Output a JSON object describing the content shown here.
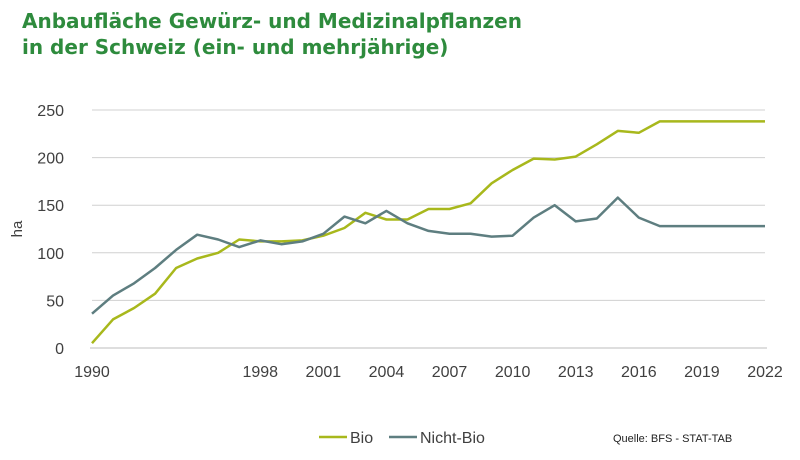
{
  "chart_data": {
    "type": "line",
    "title": "Anbaufläche Gewürz- und Medizinalpflanzen\n in der Schweiz (ein- und mehrjährige)",
    "ylabel": "ha",
    "xlabel": "",
    "ylim": [
      0,
      250
    ],
    "yticks": [
      0,
      50,
      100,
      150,
      200,
      250
    ],
    "xlim": [
      1990,
      2022
    ],
    "xticks": [
      1990,
      1998,
      2001,
      2004,
      2007,
      2010,
      2013,
      2016,
      2019,
      2022
    ],
    "grid": true,
    "legend_position": "bottom",
    "x": [
      1990,
      1991,
      1992,
      1993,
      1994,
      1995,
      1996,
      1997,
      1998,
      1999,
      2000,
      2001,
      2002,
      2003,
      2004,
      2005,
      2006,
      2007,
      2008,
      2009,
      2010,
      2011,
      2012,
      2013,
      2014,
      2015,
      2016,
      2017,
      2018,
      2019,
      2020,
      2021,
      2022
    ],
    "series": [
      {
        "name": "Bio",
        "color": "#a8b81c",
        "values": [
          5,
          30,
          42,
          57,
          84,
          94,
          100,
          114,
          112,
          112,
          113,
          118,
          126,
          142,
          135,
          135,
          146,
          146,
          152,
          173,
          187,
          199,
          198,
          201,
          214,
          228,
          226,
          238,
          238,
          238,
          238,
          238,
          238
        ]
      },
      {
        "name": "Nicht-Bio",
        "color": "#5e7e80",
        "values": [
          36,
          55,
          68,
          84,
          103,
          119,
          114,
          106,
          113,
          109,
          112,
          120,
          138,
          131,
          144,
          131,
          123,
          120,
          120,
          117,
          118,
          137,
          150,
          133,
          136,
          158,
          137,
          128,
          128,
          128,
          128,
          128,
          128
        ]
      }
    ],
    "source": "Quelle: BFS - STAT-TAB"
  }
}
